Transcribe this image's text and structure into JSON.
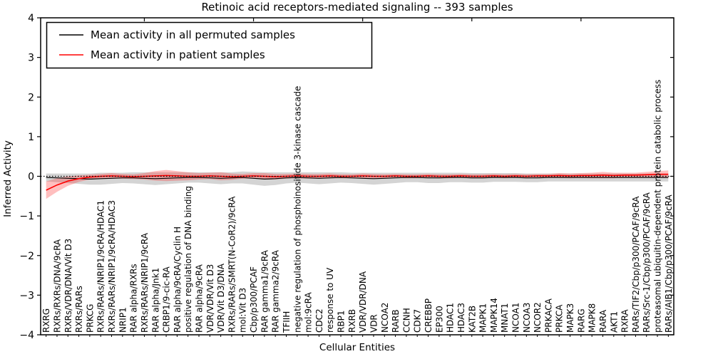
{
  "figure": {
    "title": "Retinoic acid receptors-mediated signaling -- 393 samples",
    "xlabel": "Cellular Entities",
    "ylabel": "Inferred Activity"
  },
  "legend": {
    "entries": [
      {
        "label": "Mean activity in all permuted samples",
        "color": "#000000"
      },
      {
        "label": "Mean activity in patient samples",
        "color": "#ff0000"
      }
    ]
  },
  "chart_data": {
    "type": "line",
    "title": "Retinoic acid receptors-mediated signaling -- 393 samples",
    "xlabel": "Cellular Entities",
    "ylabel": "Inferred Activity",
    "ylim": [
      -4,
      4
    ],
    "yticks": [
      -4,
      -3,
      -2,
      -1,
      0,
      1,
      2,
      3,
      4
    ],
    "grid": false,
    "legend_position": "upper-left",
    "zero_line": {
      "y": 0,
      "style": "dotted",
      "color": "#000000"
    },
    "top_tick_every": 10,
    "categories": [
      "RXRG",
      "RXRs/RXRs/DNA/9cRA",
      "RXRs/VDR/DNA/Vit D3",
      "RXRs/RARs",
      "PRKCG",
      "RXRs/RARs/NRIP1/9cRA/HDAC1",
      "RXRs/RARs/NRIP1/9cRA/HDAC3",
      "NRIP1",
      "RAR alpha/RXRs",
      "RXRs/RARs/NRIP1/9cRA",
      "RAR alpha/Jnk1",
      "CRBP1/9-cic-RA",
      "RAR alpha/9cRA/Cyclin H",
      "positive regulation of DNA binding",
      "RAR alpha/9cRA",
      "VDR/VDR/Vit D3",
      "VDR/Vit D3/DNA",
      "RXRs/RARs/SMRT(N-CoR2)/9cRA",
      "mol:Vit D3",
      "Cbp/p300/PCAF",
      "RAR gamma1/9cRA",
      "RAR gamma2/9cRA",
      "TFIIH",
      "negative regulation of phosphoinositide 3-kinase cascade",
      "mol:9cRA",
      "CDC2",
      "response to UV",
      "RBP1",
      "RXRB",
      "VDR/VDR/DNA",
      "VDR",
      "NCOA2",
      "RARB",
      "CCNH",
      "CDK7",
      "CREBBP",
      "EP300",
      "HDAC1",
      "HDAC3",
      "KAT2B",
      "MAPK1",
      "MAPK14",
      "MNAT1",
      "NCOA1",
      "NCOA3",
      "NCOR2",
      "PRKACA",
      "PRKCA",
      "MAPK3",
      "RARG",
      "MAPK8",
      "RARA",
      "AKT1",
      "RXRA",
      "RARs/TIF2/Cbp/p300/PCAF/9cRA",
      "RARs/Src-1/Cbp/p300/PCAF/9cRA",
      "proteasomal ubiquitin-dependent protein catabolic process",
      "RARs/AIB1/Cbp/p300/PCAF/9cRA"
    ],
    "series": [
      {
        "name": "Mean activity in all permuted samples",
        "color": "#000000",
        "band_color": "#a0a0a0",
        "band_opacity": 0.45,
        "line_width": 1.2,
        "values": [
          -0.03,
          -0.04,
          -0.05,
          -0.06,
          -0.07,
          -0.06,
          -0.05,
          -0.04,
          -0.04,
          -0.05,
          -0.06,
          -0.05,
          -0.04,
          -0.03,
          -0.03,
          -0.04,
          -0.05,
          -0.04,
          -0.03,
          -0.05,
          -0.07,
          -0.06,
          -0.04,
          -0.03,
          -0.04,
          -0.05,
          -0.04,
          -0.03,
          -0.04,
          -0.05,
          -0.06,
          -0.05,
          -0.04,
          -0.03,
          -0.03,
          -0.04,
          -0.04,
          -0.03,
          -0.03,
          -0.04,
          -0.04,
          -0.03,
          -0.03,
          -0.03,
          -0.04,
          -0.04,
          -0.03,
          -0.03,
          -0.03,
          -0.03,
          -0.03,
          -0.03,
          -0.03,
          -0.03,
          -0.03,
          -0.03,
          -0.03,
          -0.03
        ],
        "band_halfwidth": [
          0.1,
          0.11,
          0.12,
          0.13,
          0.14,
          0.15,
          0.14,
          0.13,
          0.14,
          0.15,
          0.16,
          0.15,
          0.14,
          0.13,
          0.13,
          0.14,
          0.15,
          0.14,
          0.15,
          0.16,
          0.17,
          0.16,
          0.14,
          0.13,
          0.14,
          0.15,
          0.14,
          0.13,
          0.13,
          0.14,
          0.15,
          0.14,
          0.13,
          0.12,
          0.12,
          0.13,
          0.13,
          0.12,
          0.12,
          0.12,
          0.12,
          0.11,
          0.11,
          0.11,
          0.11,
          0.11,
          0.1,
          0.1,
          0.1,
          0.1,
          0.1,
          0.1,
          0.1,
          0.1,
          0.1,
          0.1,
          0.1,
          0.1
        ]
      },
      {
        "name": "Mean activity in patient samples",
        "color": "#ff0000",
        "band_color": "#ff2a2a",
        "band_opacity": 0.3,
        "line_width": 1.6,
        "values": [
          -0.35,
          -0.22,
          -0.12,
          -0.06,
          -0.02,
          0.0,
          0.01,
          0.0,
          -0.01,
          0.0,
          0.01,
          0.02,
          0.01,
          0.0,
          0.0,
          0.01,
          0.0,
          -0.01,
          0.0,
          0.01,
          0.0,
          -0.01,
          0.0,
          0.01,
          0.0,
          0.0,
          0.01,
          0.0,
          0.0,
          0.01,
          0.0,
          0.0,
          0.01,
          0.0,
          0.0,
          0.01,
          0.0,
          0.0,
          0.01,
          0.0,
          0.0,
          0.01,
          0.0,
          0.01,
          0.0,
          0.01,
          0.01,
          0.02,
          0.01,
          0.02,
          0.02,
          0.03,
          0.02,
          0.03,
          0.03,
          0.04,
          0.05,
          0.05
        ],
        "band_halfwidth": [
          0.22,
          0.17,
          0.12,
          0.08,
          0.06,
          0.06,
          0.07,
          0.06,
          0.06,
          0.08,
          0.12,
          0.14,
          0.12,
          0.1,
          0.08,
          0.08,
          0.1,
          0.08,
          0.06,
          0.07,
          0.08,
          0.07,
          0.06,
          0.06,
          0.06,
          0.06,
          0.06,
          0.05,
          0.05,
          0.06,
          0.06,
          0.05,
          0.05,
          0.05,
          0.05,
          0.05,
          0.05,
          0.05,
          0.05,
          0.05,
          0.05,
          0.05,
          0.05,
          0.05,
          0.05,
          0.05,
          0.05,
          0.06,
          0.06,
          0.06,
          0.07,
          0.08,
          0.07,
          0.06,
          0.06,
          0.07,
          0.08,
          0.1
        ]
      }
    ]
  }
}
